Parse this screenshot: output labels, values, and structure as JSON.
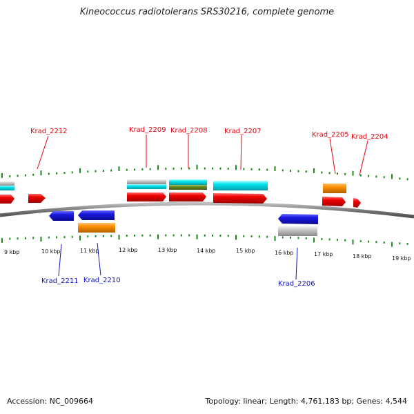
{
  "title": "Kineococcus radiotolerans SRS30216, complete genome",
  "footer": {
    "accession": "Accession: NC_009664",
    "summary": "Topology: linear; Length: 4,761,183 bp; Genes: 4,544"
  },
  "colors": {
    "forward_label": "#e8000b",
    "reverse_label": "#1010c0",
    "tick": "#1a8a1a",
    "backbone": "#8a8a8a",
    "red": "#ee0000",
    "blue": "#1a1ae0",
    "cyan": "#00e5ee",
    "orange": "#ff9000",
    "gray": "#c8c8c8",
    "green": "#6b8e23"
  },
  "scale_labels": [
    "9 kbp",
    "10 kbp",
    "11 kbp",
    "12 kbp",
    "13 kbp",
    "14 kbp",
    "15 kbp",
    "16 kbp",
    "17 kbp",
    "18 kbp",
    "19 kbp"
  ],
  "gene_labels": {
    "forward": [
      "Krad_2212",
      "Krad_2209",
      "Krad_2208",
      "Krad_2207",
      "Krad_2205",
      "Krad_2204"
    ],
    "reverse": [
      "Krad_2211",
      "Krad_2210",
      "Krad_2206"
    ]
  }
}
